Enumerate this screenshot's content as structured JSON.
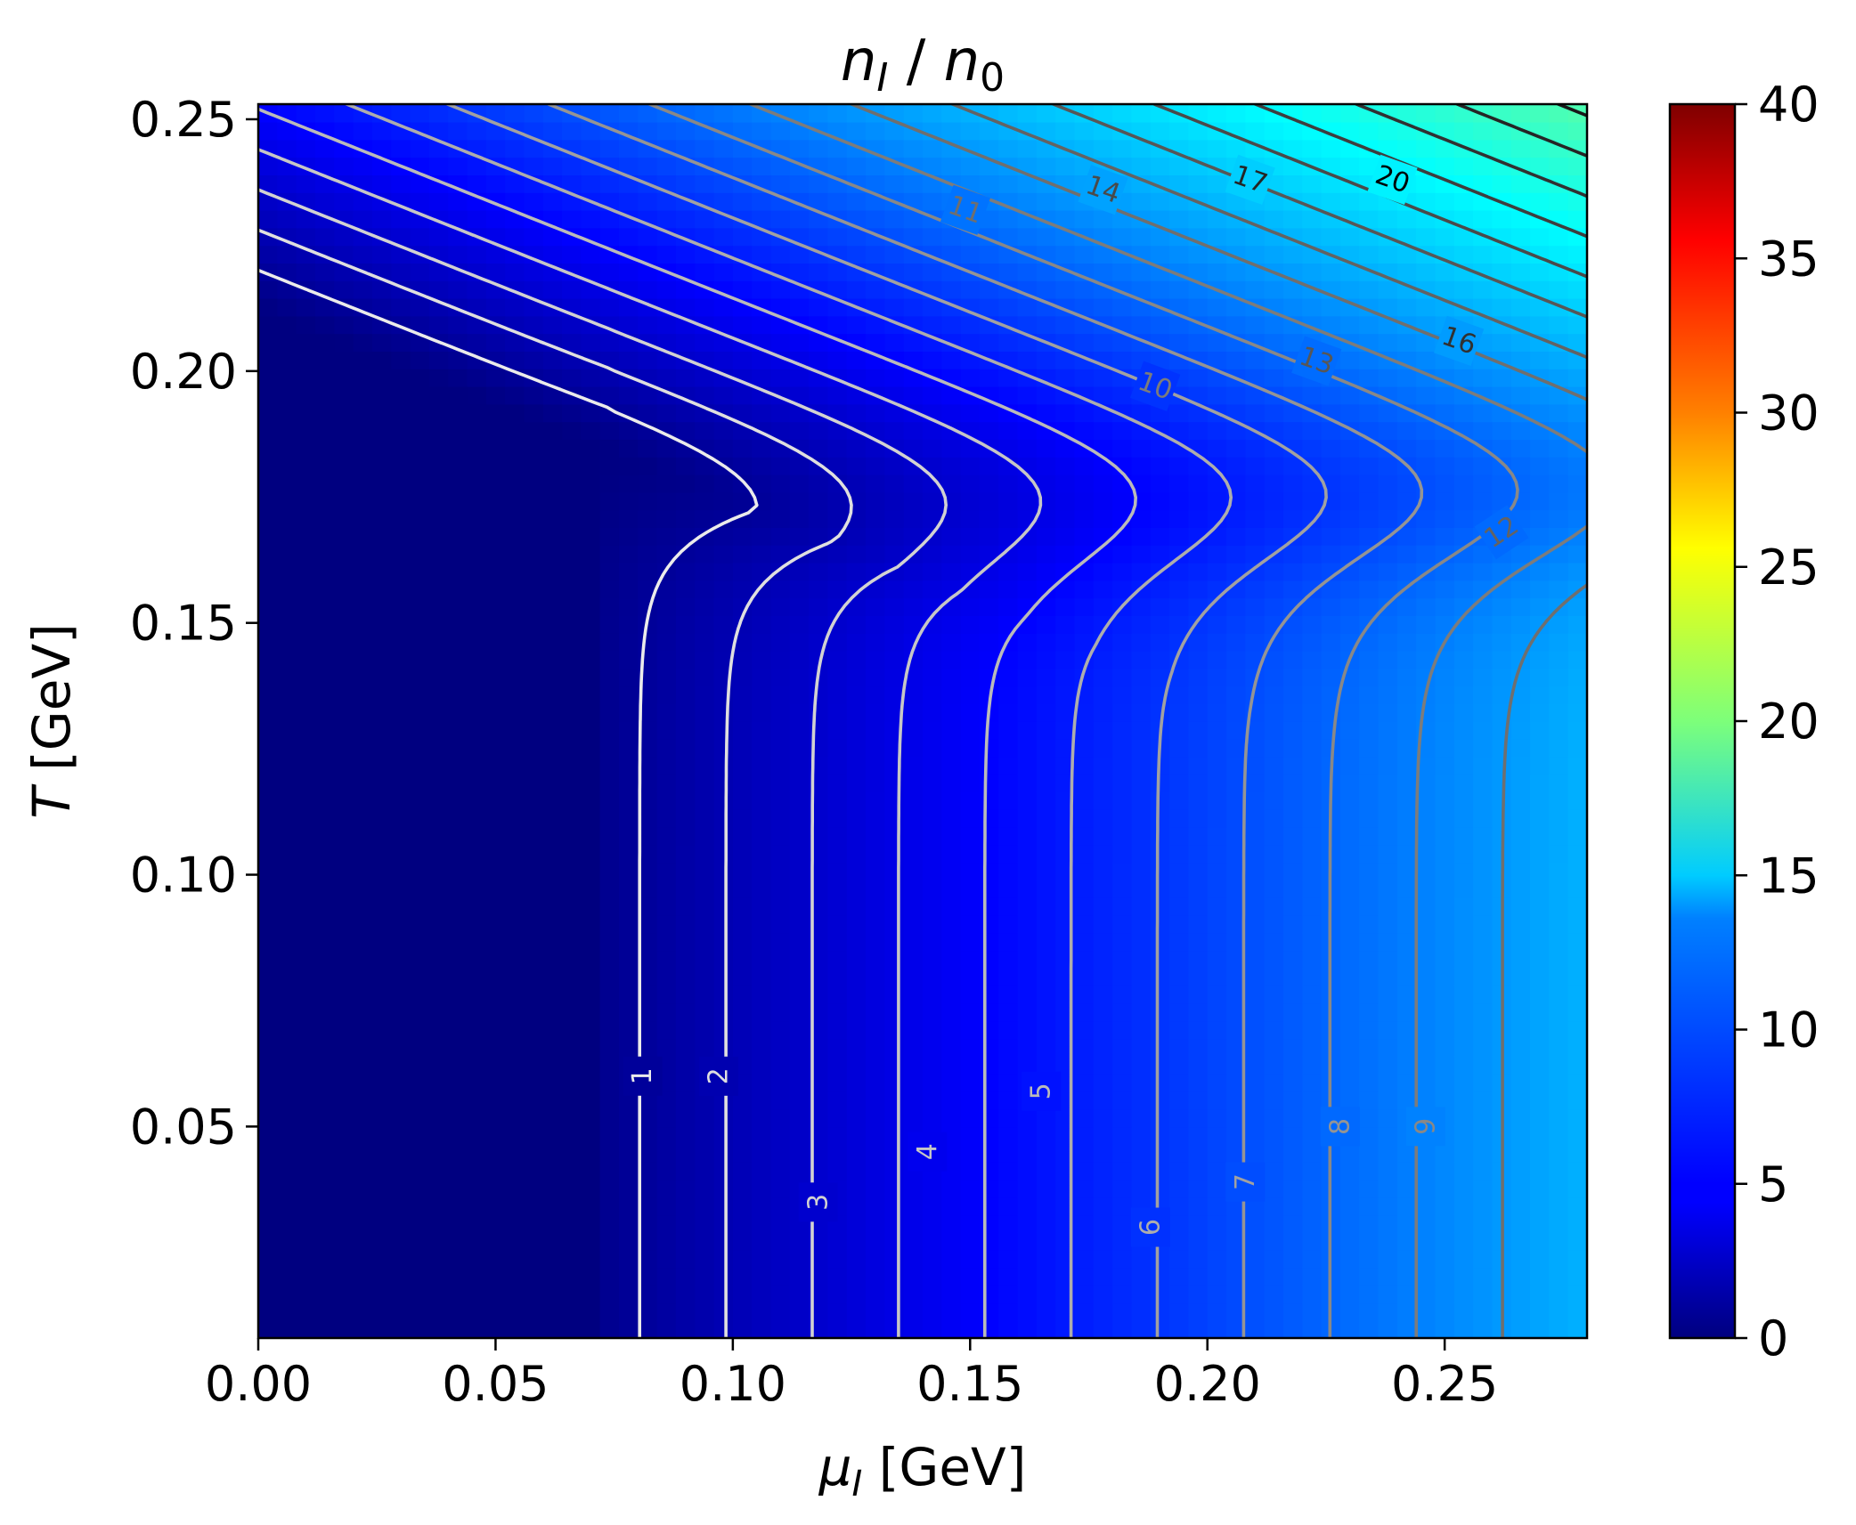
{
  "chart_data": {
    "type": "heatmap",
    "title": {
      "main": "n",
      "main_sub": "I",
      "sep": " / ",
      "den": "n",
      "den_sub": "0"
    },
    "xlabel": {
      "sym": "μ",
      "sub": "I",
      "unit": " [GeV]"
    },
    "ylabel": {
      "sym": "T",
      "unit": " [GeV]"
    },
    "xlim": [
      0.0,
      0.28
    ],
    "ylim": [
      0.008,
      0.253
    ],
    "xticks": [
      {
        "v": 0.0,
        "t": "0.00"
      },
      {
        "v": 0.05,
        "t": "0.05"
      },
      {
        "v": 0.1,
        "t": "0.10"
      },
      {
        "v": 0.15,
        "t": "0.15"
      },
      {
        "v": 0.2,
        "t": "0.20"
      },
      {
        "v": 0.25,
        "t": "0.25"
      }
    ],
    "yticks": [
      {
        "v": 0.05,
        "t": "0.05"
      },
      {
        "v": 0.1,
        "t": "0.10"
      },
      {
        "v": 0.15,
        "t": "0.15"
      },
      {
        "v": 0.2,
        "t": "0.20"
      },
      {
        "v": 0.25,
        "t": "0.25"
      }
    ],
    "colorbar": {
      "colormap": "jet",
      "range": [
        0,
        40
      ],
      "ticks": [
        {
          "v": 0,
          "t": "0"
        },
        {
          "v": 5,
          "t": "5"
        },
        {
          "v": 10,
          "t": "10"
        },
        {
          "v": 15,
          "t": "15"
        },
        {
          "v": 20,
          "t": "20"
        },
        {
          "v": 25,
          "t": "25"
        },
        {
          "v": 30,
          "t": "30"
        },
        {
          "v": 35,
          "t": "35"
        },
        {
          "v": 40,
          "t": "40"
        }
      ]
    },
    "contour_levels": [
      "1",
      "2",
      "3",
      "4",
      "5",
      "6",
      "7",
      "8",
      "9",
      "10",
      "11",
      "12",
      "13",
      "14",
      "15",
      "16",
      "17",
      "18",
      "19",
      "20"
    ],
    "contour_labels": [
      {
        "text": "1",
        "level": 1,
        "x": 0.081,
        "y": 0.06
      },
      {
        "text": "2",
        "level": 2,
        "x": 0.097,
        "y": 0.06
      },
      {
        "text": "3",
        "level": 3,
        "x": 0.118,
        "y": 0.035
      },
      {
        "text": "4",
        "level": 4,
        "x": 0.141,
        "y": 0.045
      },
      {
        "text": "5",
        "level": 5,
        "x": 0.165,
        "y": 0.057
      },
      {
        "text": "6",
        "level": 6,
        "x": 0.188,
        "y": 0.03
      },
      {
        "text": "7",
        "level": 7,
        "x": 0.208,
        "y": 0.039
      },
      {
        "text": "8",
        "level": 8,
        "x": 0.228,
        "y": 0.05
      },
      {
        "text": "9",
        "level": 9,
        "x": 0.246,
        "y": 0.05
      },
      {
        "text": "10",
        "level": 10,
        "x": 0.189,
        "y": 0.197
      },
      {
        "text": "11",
        "level": 11,
        "x": 0.149,
        "y": 0.232
      },
      {
        "text": "12",
        "level": 12,
        "x": 0.262,
        "y": 0.168
      },
      {
        "text": "13",
        "level": 13,
        "x": 0.223,
        "y": 0.202
      },
      {
        "text": "14",
        "level": 14,
        "x": 0.178,
        "y": 0.236
      },
      {
        "text": "16",
        "level": 16,
        "x": 0.253,
        "y": 0.206
      },
      {
        "text": "17",
        "level": 17,
        "x": 0.209,
        "y": 0.238
      },
      {
        "text": "20",
        "level": 20,
        "x": 0.239,
        "y": 0.238
      }
    ]
  }
}
